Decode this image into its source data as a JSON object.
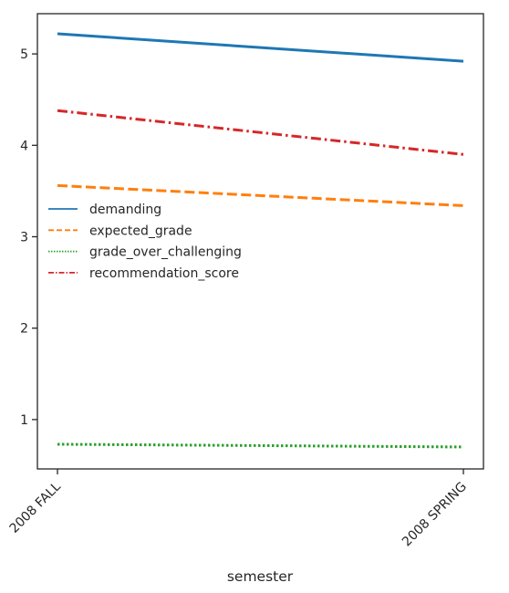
{
  "chart_data": {
    "type": "line",
    "x": [
      "2008 FALL",
      "2008 SPRING"
    ],
    "xlabel": "semester",
    "ylabel": "",
    "ylim": [
      0.46,
      5.44
    ],
    "yticks": [
      1,
      2,
      3,
      4,
      5
    ],
    "grid": false,
    "legend_position": "center-left",
    "series": [
      {
        "name": "demanding",
        "values": [
          5.22,
          4.92
        ],
        "color": "#1f77b4",
        "dash": "solid"
      },
      {
        "name": "expected_grade",
        "values": [
          3.56,
          3.34
        ],
        "color": "#ff7f0e",
        "dash": "dashed"
      },
      {
        "name": "grade_over_challenging",
        "values": [
          0.73,
          0.7
        ],
        "color": "#2ca02c",
        "dash": "dotted"
      },
      {
        "name": "recommendation_score",
        "values": [
          4.38,
          3.9
        ],
        "color": "#d62728",
        "dash": "dashdot"
      }
    ]
  }
}
